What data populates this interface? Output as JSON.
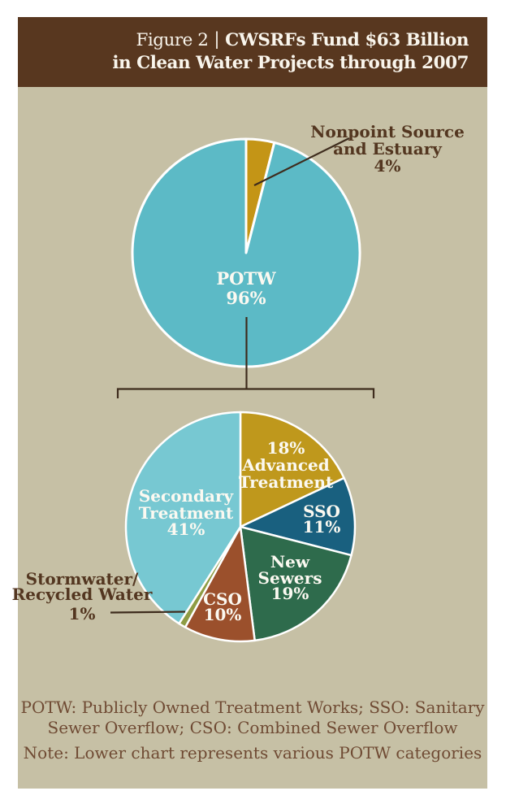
{
  "colors": {
    "header_bg": "#58371f",
    "header_text": "#f9f5ec",
    "panel_bg": "#c6c0a5",
    "inside_label": "#fbf9f1",
    "callout_label": "#533620",
    "footnote_text": "#6f4a33",
    "connector": "#3e2c1d",
    "page_bg": "#ffffff",
    "slice_stroke": "#ffffff"
  },
  "header": {
    "figure_label": "Figure 2",
    "separator": "|",
    "title_line1_bold": "CWSRFs Fund $63 Billion",
    "title_line2": "in Clean Water Projects through 2007"
  },
  "chart_data": [
    {
      "type": "pie",
      "title": "CWSRF funding split",
      "units": "percent",
      "start_angle_deg": 0,
      "slices": [
        {
          "label": "Nonpoint Source and Estuary",
          "value": 4,
          "color": "#c49516"
        },
        {
          "label": "POTW",
          "value": 96,
          "color": "#5cbac6"
        }
      ]
    },
    {
      "type": "pie",
      "title": "POTW categories",
      "units": "percent",
      "start_angle_deg": 0,
      "slices": [
        {
          "label": "Advanced Treatment",
          "value": 18,
          "color": "#bf981c"
        },
        {
          "label": "SSO",
          "value": 11,
          "color": "#19607f"
        },
        {
          "label": "New Sewers",
          "value": 19,
          "color": "#2e6b4c"
        },
        {
          "label": "CSO",
          "value": 10,
          "color": "#9b502c"
        },
        {
          "label": "Stormwater/Recycled Water",
          "value": 1,
          "color": "#8e9c44"
        },
        {
          "label": "Secondary Treatment",
          "value": 41,
          "color": "#77c8d2"
        }
      ]
    }
  ],
  "labels": {
    "potw": [
      "POTW",
      "96%"
    ],
    "nonpoint": [
      "Nonpoint Source",
      "and Estuary",
      "4%"
    ],
    "advanced": [
      "18%",
      "Advanced",
      "Treatment"
    ],
    "sso": [
      "SSO",
      "11%"
    ],
    "new_sewers": [
      "New",
      "Sewers",
      "19%"
    ],
    "cso": [
      "CSO",
      "10%"
    ],
    "secondary": [
      "Secondary",
      "Treatment",
      "41%"
    ],
    "stormwater": [
      "Stormwater/",
      "Recycled Water",
      "1%"
    ]
  },
  "footnote": {
    "abbrev_line1": "POTW: Publicly Owned Treatment Works; SSO: Sanitary",
    "abbrev_line2": "Sewer Overflow; CSO: Combined Sewer Overflow",
    "note": "Note: Lower chart represents various POTW categories"
  }
}
